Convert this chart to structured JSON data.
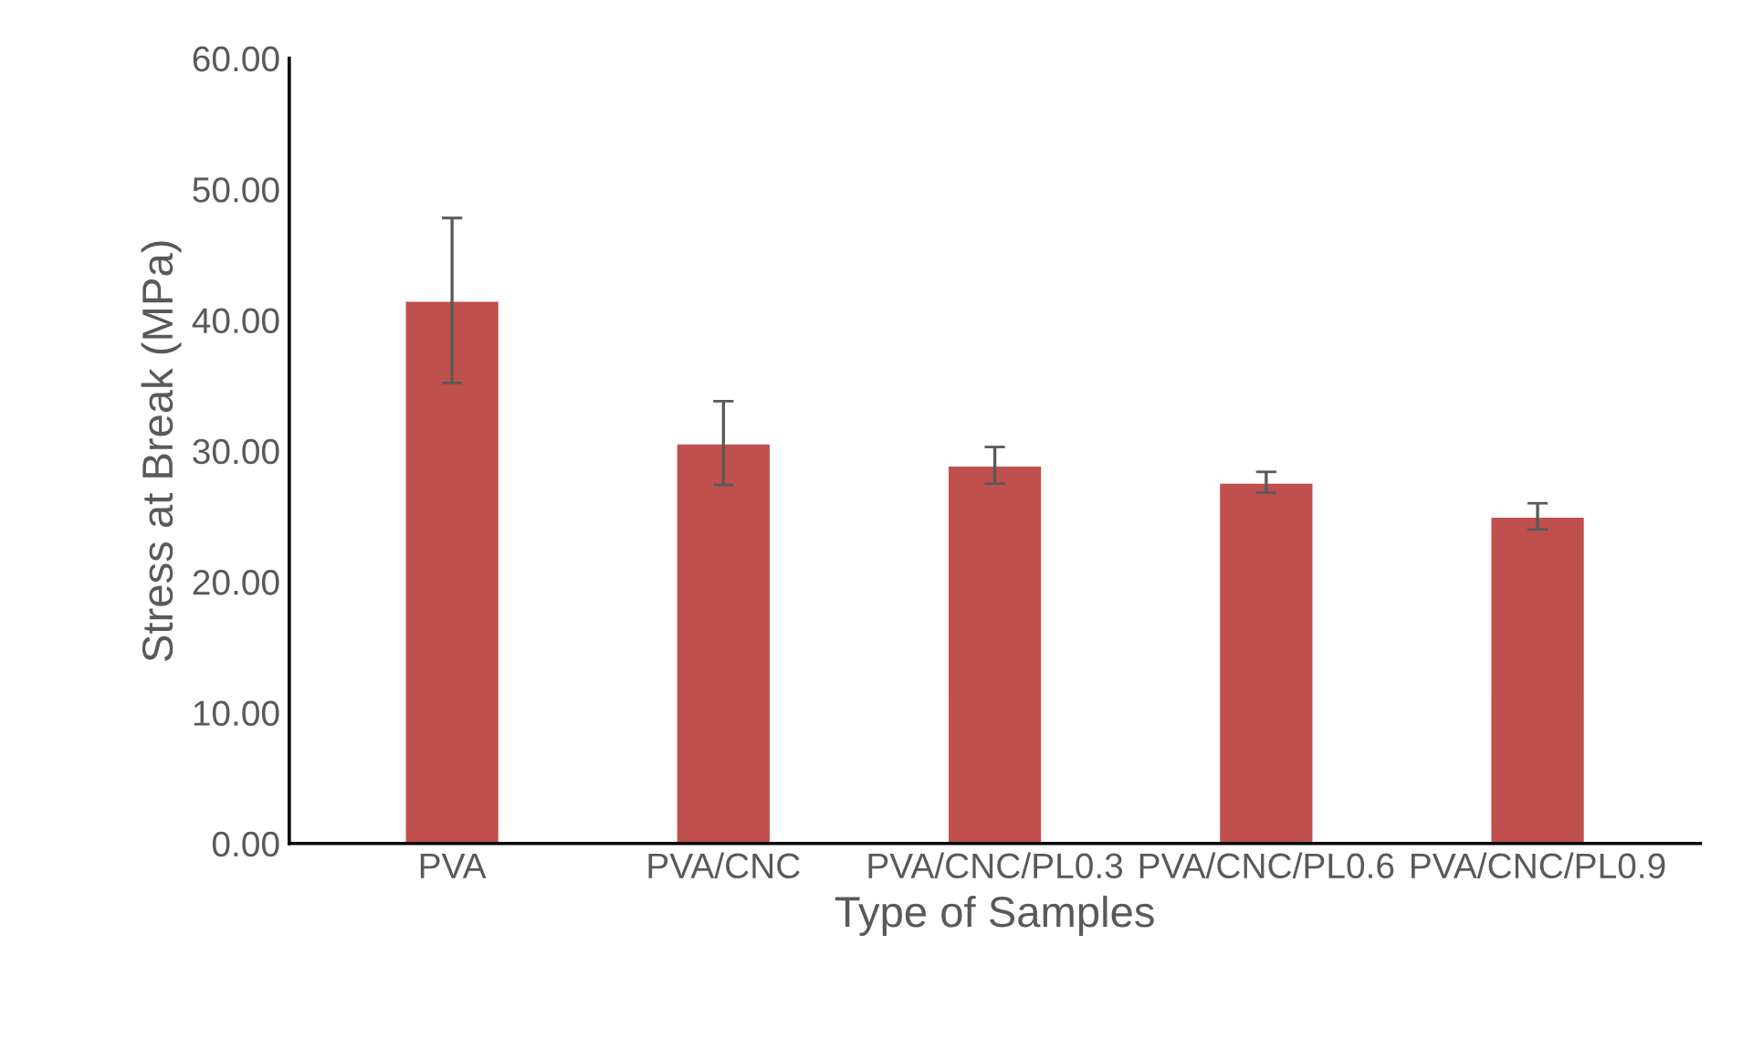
{
  "chart_data": {
    "type": "bar",
    "xlabel": "Type of Samples",
    "ylabel": "Stress at Break (MPa)",
    "categories": [
      "PVA",
      "PVA/CNC",
      "PVA/CNC/PL0.3",
      "PVA/CNC/PL0.6",
      "PVA/CNC/PL0.9"
    ],
    "values": [
      41.5,
      30.6,
      28.9,
      27.6,
      25.0
    ],
    "errors": [
      6.3,
      3.2,
      1.4,
      0.8,
      1.0
    ],
    "color": "#c0504d",
    "ylim": [
      0,
      60
    ],
    "yticks": [
      {
        "value": 0,
        "label": "0.00"
      },
      {
        "value": 10,
        "label": "10.00"
      },
      {
        "value": 20,
        "label": "20.00"
      },
      {
        "value": 30,
        "label": "30.00"
      },
      {
        "value": 40,
        "label": "40.00"
      },
      {
        "value": 50,
        "label": "50.00"
      },
      {
        "value": 60,
        "label": "60.00"
      }
    ],
    "grid": false
  }
}
